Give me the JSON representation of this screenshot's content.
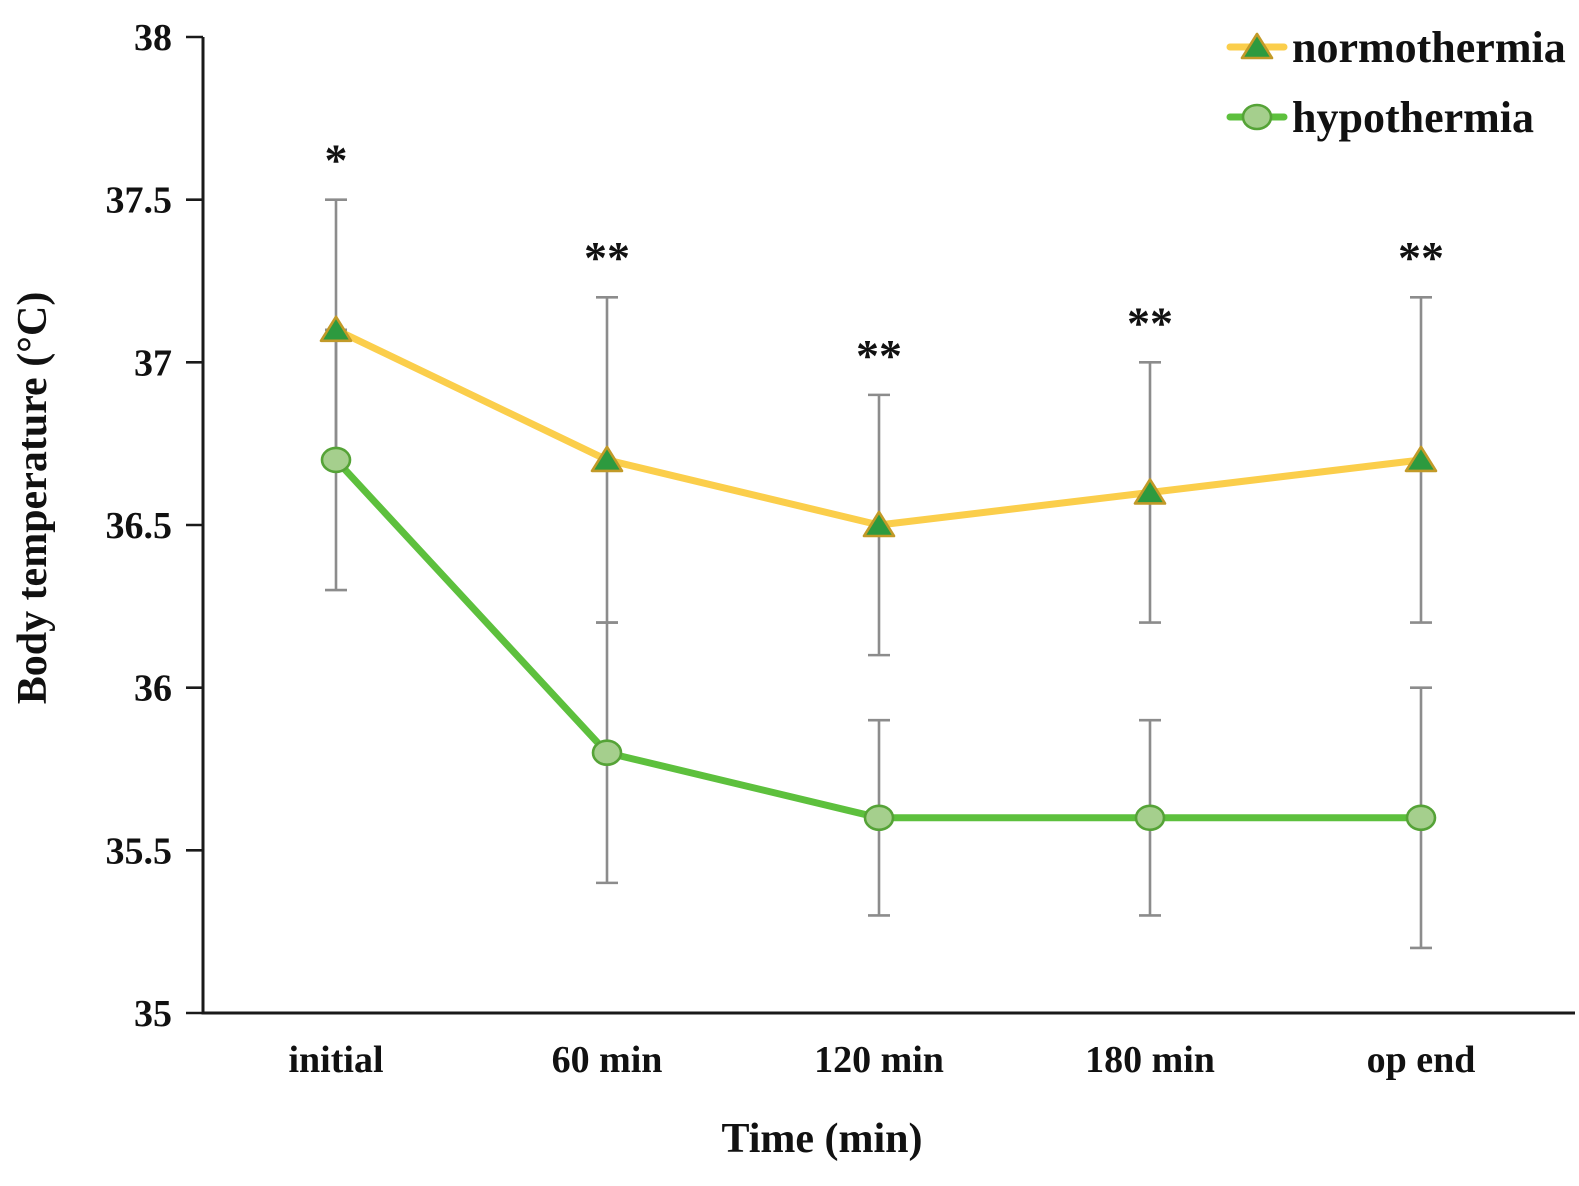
{
  "chart_data": {
    "type": "line",
    "title": "",
    "xlabel": "Time (min)",
    "ylabel": "Body temperature (°C)",
    "categories": [
      "initial",
      "60 min",
      "120 min",
      "180 min",
      "op end"
    ],
    "y_axis": {
      "min": 35,
      "max": 38,
      "tick_values": [
        38,
        37.5,
        37,
        36.5,
        36,
        35.5,
        35
      ],
      "tick_labels": [
        "38",
        "37.5",
        "37",
        "36.5",
        "36",
        "35.5",
        "35"
      ]
    },
    "grid": false,
    "error_bar_color": "#8c8c8c",
    "axis_color": "#1a1a1a",
    "series": [
      {
        "name": "normothermia",
        "line_color": "#fbce4b",
        "marker": "triangle",
        "marker_fill": "#2d9a3f",
        "marker_stroke": "#c29a28",
        "values": [
          37.1,
          36.7,
          36.5,
          36.6,
          36.7
        ],
        "error_upper": [
          37.5,
          37.2,
          36.9,
          37.0,
          37.2
        ],
        "error_lower": [
          36.7,
          36.2,
          36.1,
          36.2,
          36.2
        ]
      },
      {
        "name": "hypothermia",
        "line_color": "#5dc03d",
        "marker": "circle",
        "marker_fill": "#a5cf8d",
        "marker_stroke": "#55a337",
        "values": [
          36.7,
          35.8,
          35.6,
          35.6,
          35.6
        ],
        "error_upper": [
          37.1,
          36.2,
          35.9,
          35.9,
          36.0
        ],
        "error_lower": [
          36.3,
          35.4,
          35.3,
          35.3,
          35.2
        ]
      }
    ],
    "significance": [
      {
        "category": "initial",
        "label": "*",
        "y": 37.62
      },
      {
        "category": "60 min",
        "label": "**",
        "y": 37.32
      },
      {
        "category": "120 min",
        "label": "**",
        "y": 37.02
      },
      {
        "category": "180 min",
        "label": "**",
        "y": 37.12
      },
      {
        "category": "op end",
        "label": "**",
        "y": 37.32
      }
    ],
    "legend": {
      "position": "top-right",
      "entries": [
        "normothermia",
        "hypothermia"
      ]
    }
  }
}
